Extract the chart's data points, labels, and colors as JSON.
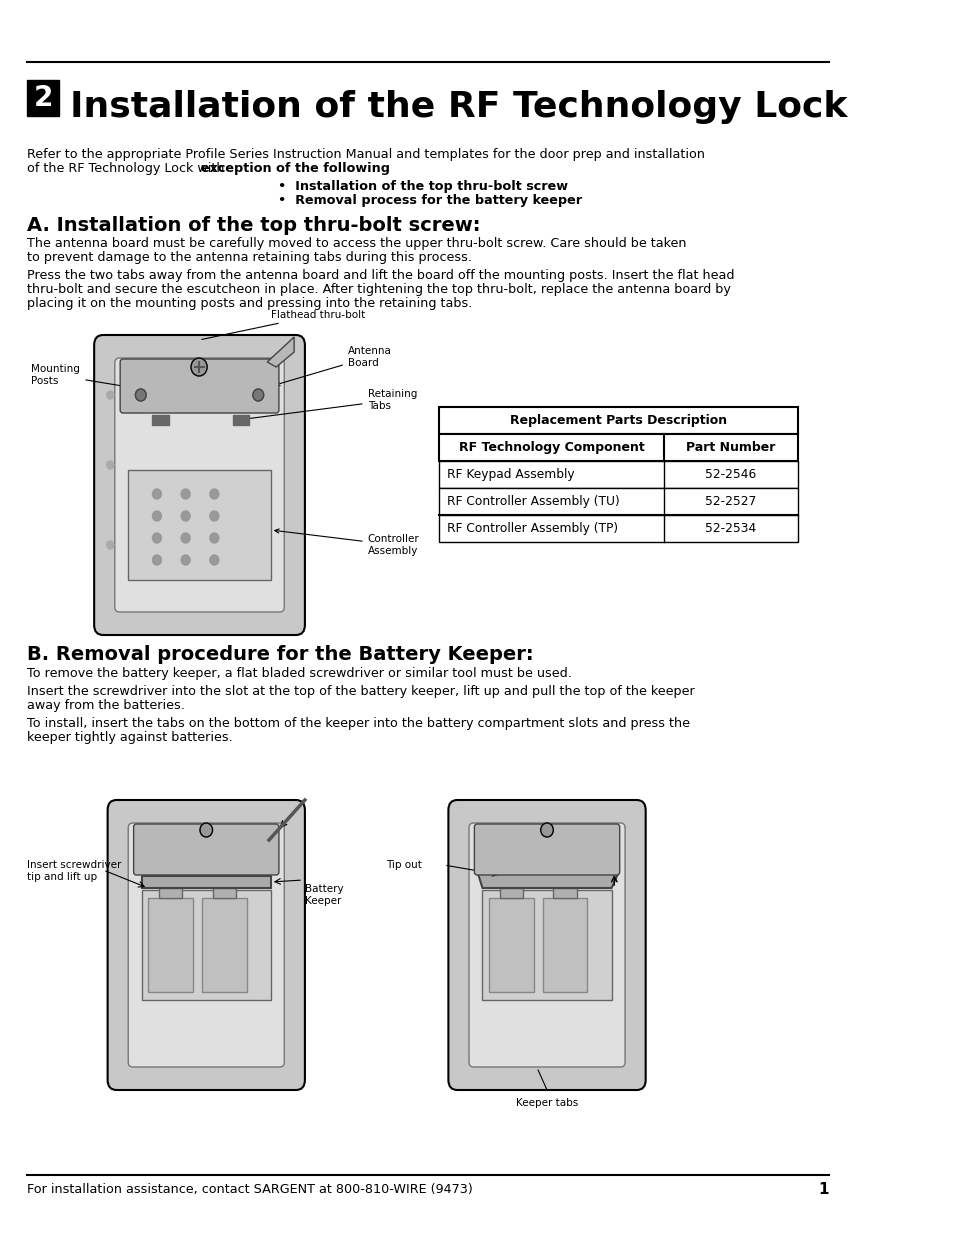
{
  "page_bg": "#ffffff",
  "section_number": "2",
  "main_title": "Installation of the RF Technology Lock",
  "intro_line1": "Refer to the appropriate Profile Series Instruction Manual and templates for the door prep and installation",
  "intro_line2_normal": "of the RF Technology Lock with ",
  "intro_bold": "exception of the following",
  "intro_colon": ":",
  "bullet1": "•  Installation of the top thru-bolt screw",
  "bullet2": "•  Removal process for the battery keeper",
  "section_a_title": "A. Installation of the top thru-bolt screw:",
  "section_a_para1_l1": "The antenna board must be carefully moved to access the upper thru-bolt screw. Care should be taken",
  "section_a_para1_l2": "to prevent damage to the antenna retaining tabs during this process.",
  "section_a_para2_l1": "Press the two tabs away from the antenna board and lift the board off the mounting posts. Insert the flat head",
  "section_a_para2_l2": "thru-bolt and secure the escutcheon in place. After tightening the top thru-bolt, replace the antenna board by",
  "section_a_para2_l3": "placing it on the mounting posts and pressing into the retaining tabs.",
  "table_title": "Replacement Parts Description",
  "table_col1_header": "RF Technology Component",
  "table_col2_header": "Part Number",
  "table_rows": [
    [
      "RF Keypad Assembly",
      "52-2546"
    ],
    [
      "RF Controller Assembly (TU)",
      "52-2527"
    ],
    [
      "RF Controller Assembly (TP)",
      "52-2534"
    ]
  ],
  "section_b_title": "B. Removal procedure for the Battery Keeper:",
  "section_b_para1": "To remove the battery keeper, a flat bladed screwdriver or similar tool must be used.",
  "section_b_para2_l1": "Insert the screwdriver into the slot at the top of the battery keeper, lift up and pull the top of the keeper",
  "section_b_para2_l2": "away from the batteries.",
  "section_b_para3_l1": "To install, insert the tabs on the bottom of the keeper into the battery compartment slots and press the",
  "section_b_para3_l2": "keeper tightly against batteries.",
  "footer_text": "For installation assistance, contact SARGENT at 800-810-WIRE (9473)",
  "footer_page": "1",
  "label_flathead": "Flathead thru-bolt",
  "label_antenna": "Antenna\nBoard",
  "label_mounting": "Mounting\nPosts",
  "label_retaining": "Retaining\nTabs",
  "label_controller": "Controller\nAssembly",
  "label_tipout": "Tip out",
  "label_battery_keeper": "Battery\nKeeper",
  "label_insert": "Insert screwdriver\ntip and lift up",
  "label_keeper_tabs": "Keeper tabs"
}
